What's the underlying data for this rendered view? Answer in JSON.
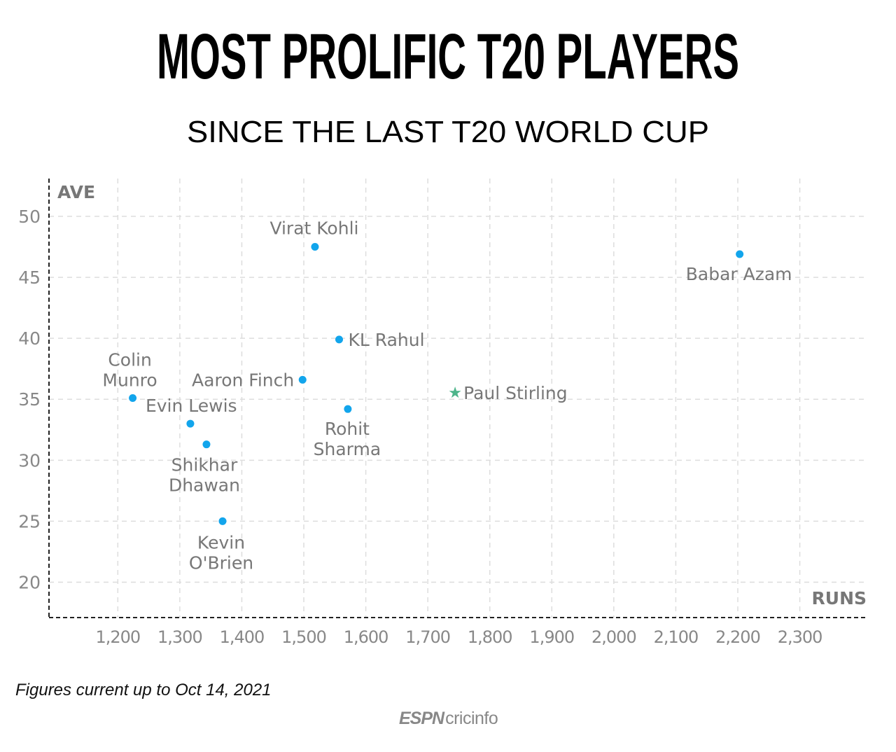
{
  "chart_data": {
    "type": "scatter",
    "title": "MOST PROLIFIC T20 PLAYERS",
    "subtitle": "SINCE THE LAST T20 WORLD CUP",
    "xlabel": "RUNS",
    "ylabel": "AVE",
    "xlim": [
      1089,
      2410
    ],
    "ylim": [
      17.1,
      53.1
    ],
    "xticks": [
      1200,
      1300,
      1400,
      1500,
      1600,
      1700,
      1800,
      1900,
      2000,
      2100,
      2200,
      2300
    ],
    "xtick_labels": [
      "1,200",
      "1,300",
      "1,400",
      "1,500",
      "1,600",
      "1,700",
      "1,800",
      "1,900",
      "2,000",
      "2,100",
      "2,200",
      "2,300"
    ],
    "yticks": [
      20,
      25,
      30,
      35,
      40,
      45,
      50
    ],
    "yticks_labels": [
      "20",
      "25",
      "30",
      "35",
      "40",
      "45",
      "50"
    ],
    "grid": true,
    "points": [
      {
        "name": "Virat Kohli",
        "x": 1518,
        "y": 47.5,
        "marker": "dot"
      },
      {
        "name": "Babar Azam",
        "x": 2203,
        "y": 46.9,
        "marker": "dot"
      },
      {
        "name": "KL Rahul",
        "x": 1557,
        "y": 39.9,
        "marker": "dot"
      },
      {
        "name": "Aaron Finch",
        "x": 1498,
        "y": 36.6,
        "marker": "dot"
      },
      {
        "name": "Paul Stirling",
        "x": 1744,
        "y": 35.6,
        "marker": "star"
      },
      {
        "name": "Colin Munro",
        "x": 1224,
        "y": 35.1,
        "marker": "dot"
      },
      {
        "name": "Rohit Sharma",
        "x": 1571,
        "y": 34.2,
        "marker": "dot"
      },
      {
        "name": "Evin Lewis",
        "x": 1317,
        "y": 33.0,
        "marker": "dot"
      },
      {
        "name": "Shikhar Dhawan",
        "x": 1343,
        "y": 31.3,
        "marker": "dot"
      },
      {
        "name": "Kevin O'Brien",
        "x": 1369,
        "y": 25.0,
        "marker": "dot"
      }
    ],
    "colors": {
      "dot": "#12a5ec",
      "star": "#4cb48a",
      "label": "#777777",
      "tick": "#888888",
      "grid": "#dddddd"
    }
  },
  "footnote": "Figures current up to Oct 14, 2021",
  "logo": {
    "espn": "ESPN",
    "cricinfo": "cricinfo"
  }
}
